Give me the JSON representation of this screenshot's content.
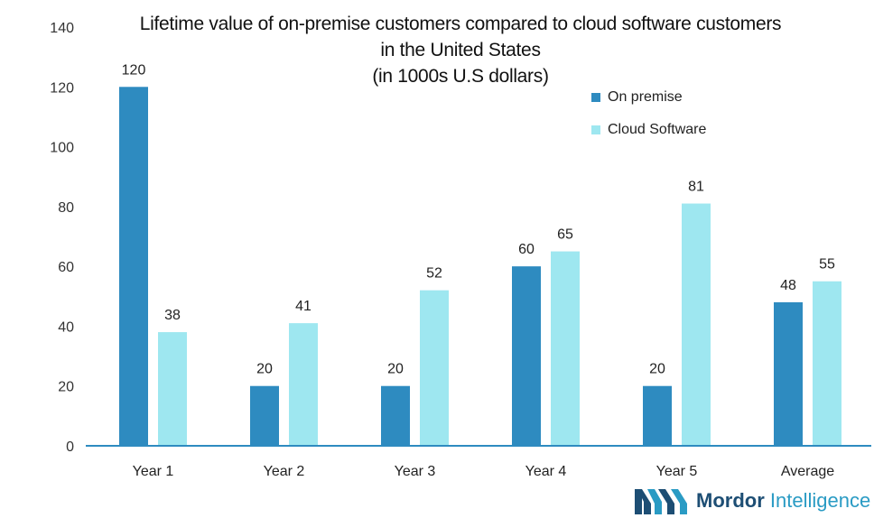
{
  "chart_data": {
    "type": "bar",
    "title_lines": [
      "Lifetime value of on-premise customers compared to cloud software customers",
      "in the United States",
      "(in 1000s U.S dollars)"
    ],
    "categories": [
      "Year 1",
      "Year 2",
      "Year 3",
      "Year 4",
      "Year 5",
      "Average"
    ],
    "series": [
      {
        "name": "On premise",
        "values": [
          120,
          20,
          20,
          60,
          20,
          48
        ],
        "color": "#2e8bc0"
      },
      {
        "name": "Cloud Software",
        "values": [
          38,
          41,
          52,
          65,
          81,
          55
        ],
        "color": "#9ee7f0"
      }
    ],
    "ylim": [
      0,
      140
    ],
    "yticks": [
      0,
      20,
      40,
      60,
      80,
      100,
      120,
      140
    ],
    "xlabel": "",
    "ylabel": "",
    "grid": false,
    "legend": "top-right",
    "data_labels": true
  },
  "branding": {
    "logo_name": "mordor-intelligence-logo",
    "word1": "Mordor",
    "word2": "Intelligence"
  }
}
